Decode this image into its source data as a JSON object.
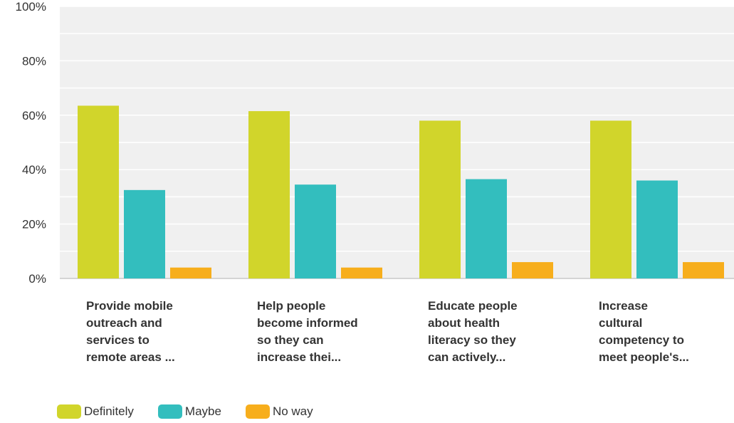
{
  "chart_data": {
    "type": "bar",
    "categories": [
      [
        "Provide mobile",
        "outreach and",
        "services to",
        "remote areas ..."
      ],
      [
        "Help people",
        "become informed",
        "so they can",
        "increase thei..."
      ],
      [
        "Educate people",
        "about health",
        "literacy so they",
        "can actively..."
      ],
      [
        "Increase",
        "cultural",
        "competency to",
        "meet people's..."
      ]
    ],
    "series": [
      {
        "name": "Definitely",
        "color": "#d1d52b",
        "values": [
          63.5,
          61.5,
          58,
          58
        ]
      },
      {
        "name": "Maybe",
        "color": "#33bebe",
        "values": [
          32.5,
          34.5,
          36.5,
          36
        ]
      },
      {
        "name": "No way",
        "color": "#f7ae1c",
        "values": [
          4,
          4,
          6,
          6
        ]
      }
    ],
    "yticks": [
      "0%",
      "20%",
      "40%",
      "60%",
      "80%",
      "100%"
    ],
    "ylim": [
      0,
      100
    ],
    "grid": true,
    "legend_position": "bottom-left",
    "plot_background": "#f0f0f0"
  }
}
